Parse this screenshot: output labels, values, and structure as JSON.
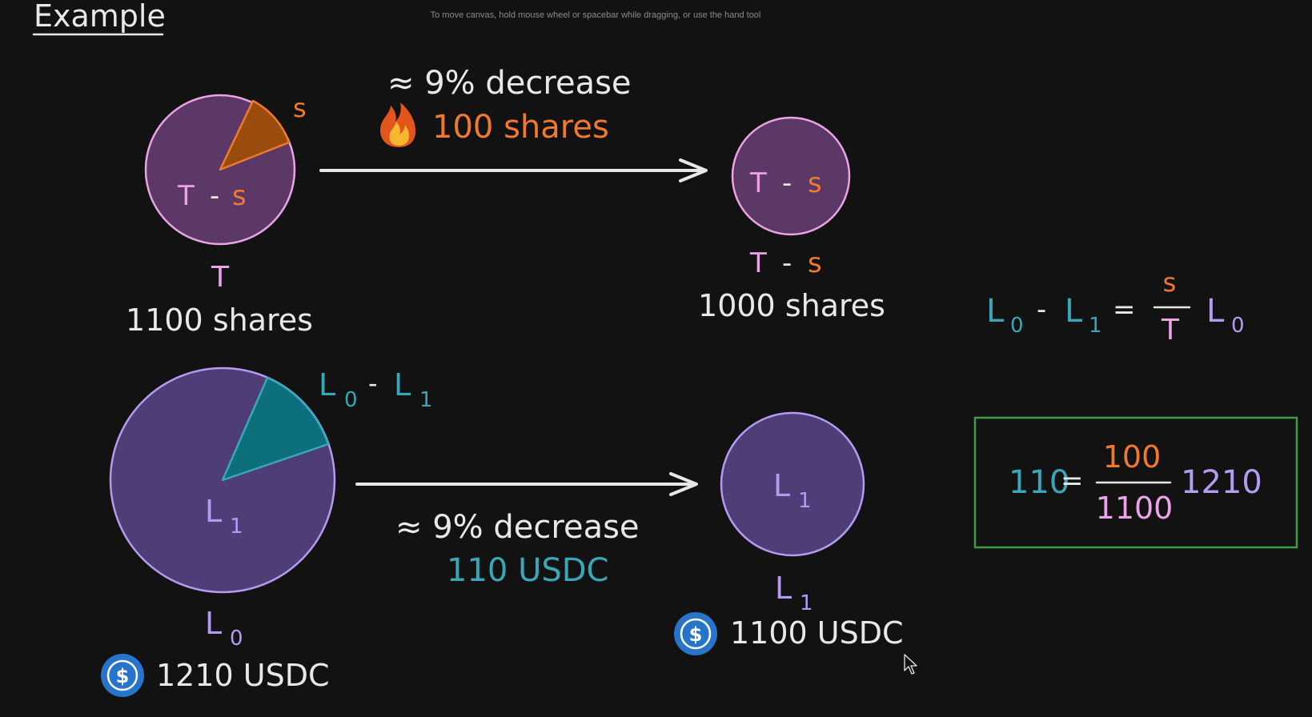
{
  "header": {
    "title": "Example",
    "hint": "To move canvas, hold mouse wheel or spacebar while dragging, or use the hand tool"
  },
  "colors": {
    "background": "#121212",
    "white": "#e8e8e8",
    "pink": "#e9a3e6",
    "orange": "#ef7a2e",
    "teal": "#3aa7b8",
    "purple": "#b39cf0",
    "green": "#3f9a4a",
    "pie_pink_fill": "#5c3866",
    "pie_purple_fill": "#4f3d78",
    "usdc_blue": "#2775ca"
  },
  "shares_row": {
    "top_pie": {
      "slice_label": "s",
      "body_label_T": "T",
      "body_label_dash": "-",
      "body_label_s": "s"
    },
    "top_pie_caption": {
      "label": "T",
      "value": "1100 shares"
    },
    "top_arrow": {
      "percent_text": "≈ 9% decrease",
      "burn_icon": "fire-icon",
      "burn_text": "100 shares"
    },
    "right_pie": {
      "body_label_T": "T",
      "body_label_dash": "-",
      "body_label_s": "s"
    },
    "right_pie_caption": {
      "label_T": "T",
      "label_dash": "-",
      "label_s": "s",
      "value": "1000 shares"
    }
  },
  "usdc_row": {
    "bottom_pie": {
      "slice_label_L": "L",
      "slice_label_0": "0",
      "slice_label_dash": "-",
      "slice_label_L2": "L",
      "slice_label_1": "1",
      "body_label_L": "L",
      "body_label_sub": "1"
    },
    "bottom_pie_caption": {
      "label_L": "L",
      "label_sub": "0",
      "icon": "usdc-icon",
      "icon_glyph": "$",
      "value": "1210 USDC"
    },
    "bottom_arrow": {
      "percent_text": "≈ 9% decrease",
      "amount_text": "110 USDC"
    },
    "right_pie": {
      "body_label_L": "L",
      "body_label_sub": "1"
    },
    "right_pie_caption": {
      "label_L": "L",
      "label_sub": "1",
      "icon": "usdc-icon",
      "icon_glyph": "$",
      "value": "1100 USDC"
    }
  },
  "formula": {
    "lhs_L0": "L",
    "lhs_0": "0",
    "minus": "-",
    "lhs_L1": "L",
    "lhs_1": "1",
    "equals": "=",
    "numerator": "s",
    "denominator": "T",
    "rhs_L": "L",
    "rhs_0": "0"
  },
  "example_box": {
    "lhs": "110",
    "equals": "=",
    "numerator": "100",
    "denominator": "1100",
    "rhs": "1210"
  }
}
